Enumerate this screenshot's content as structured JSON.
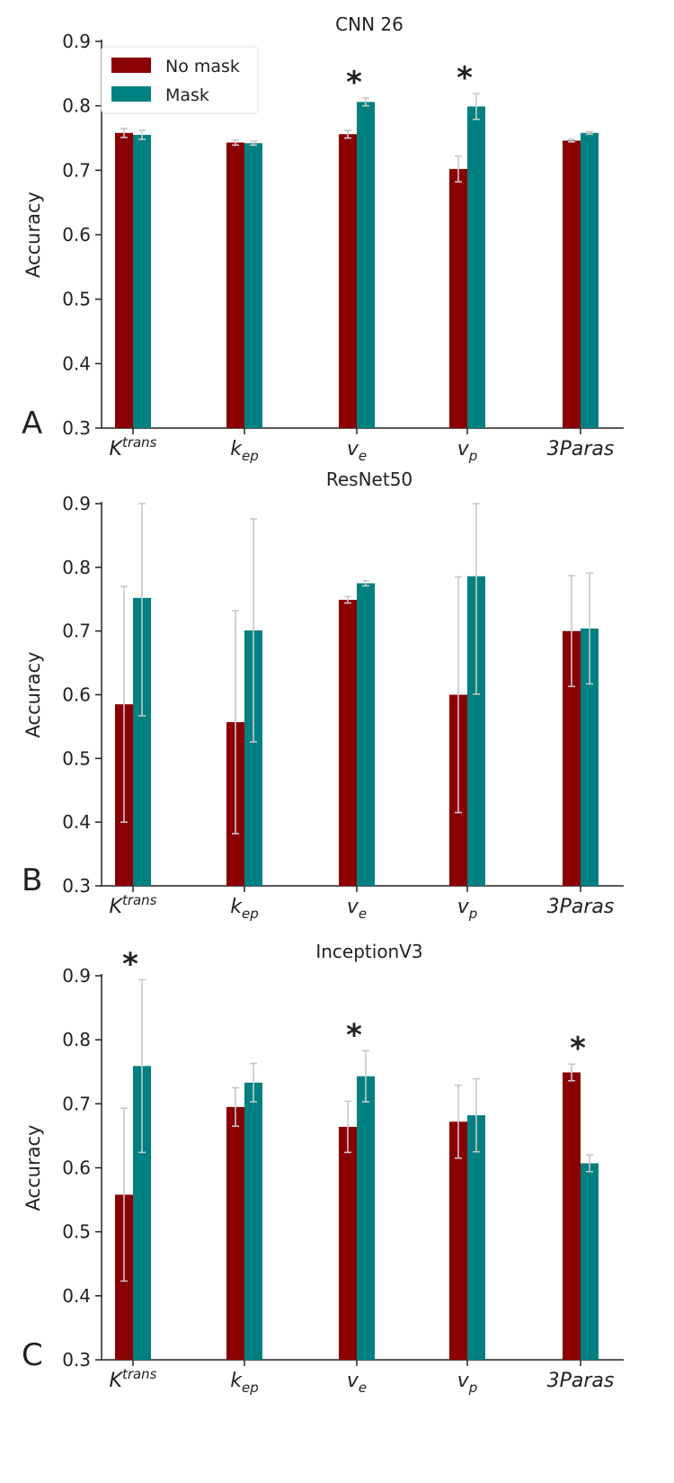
{
  "colors": {
    "no_mask": "#8b0000",
    "mask": "#008080",
    "error": "#c8c8c8",
    "axis": "#222222"
  },
  "legend": {
    "items": [
      {
        "label": "No mask",
        "color": "#8b0000"
      },
      {
        "label": "Mask",
        "color": "#008080"
      }
    ]
  },
  "chart_data": [
    {
      "type": "bar",
      "title": "CNN 26",
      "panel": "A",
      "ylabel": "Accuracy",
      "ylim": [
        0.3,
        0.9
      ],
      "yticks": [
        "0.3",
        "0.4",
        "0.5",
        "0.6",
        "0.7",
        "0.8",
        "0.9"
      ],
      "categories": [
        {
          "base": "K",
          "sup": "trans",
          "sub": ""
        },
        {
          "base": "k",
          "sup": "",
          "sub": "ep"
        },
        {
          "base": "v",
          "sup": "",
          "sub": "e"
        },
        {
          "base": "v",
          "sup": "",
          "sub": "p"
        },
        {
          "base": "3Paras",
          "sup": "",
          "sub": ""
        }
      ],
      "series": [
        {
          "name": "No mask",
          "values": [
            0.758,
            0.743,
            0.756,
            0.702,
            0.746
          ],
          "errors": [
            0.007,
            0.004,
            0.006,
            0.02,
            0.002
          ]
        },
        {
          "name": "Mask",
          "values": [
            0.755,
            0.742,
            0.806,
            0.799,
            0.758
          ],
          "errors": [
            0.007,
            0.003,
            0.006,
            0.02,
            0.002
          ]
        }
      ],
      "significant": [
        false,
        false,
        true,
        true,
        false
      ],
      "marker": "*",
      "legend": true
    },
    {
      "type": "bar",
      "title": "ResNet50",
      "panel": "B",
      "ylabel": "Accuracy",
      "ylim": [
        0.3,
        0.9
      ],
      "yticks": [
        "0.3",
        "0.4",
        "0.5",
        "0.6",
        "0.7",
        "0.8",
        "0.9"
      ],
      "categories": [
        {
          "base": "K",
          "sup": "trans",
          "sub": ""
        },
        {
          "base": "k",
          "sup": "",
          "sub": "ep"
        },
        {
          "base": "v",
          "sup": "",
          "sub": "e"
        },
        {
          "base": "v",
          "sup": "",
          "sub": "p"
        },
        {
          "base": "3Paras",
          "sup": "",
          "sub": ""
        }
      ],
      "series": [
        {
          "name": "No mask",
          "values": [
            0.585,
            0.557,
            0.749,
            0.6,
            0.7
          ],
          "errors": [
            0.185,
            0.175,
            0.005,
            0.185,
            0.087
          ]
        },
        {
          "name": "Mask",
          "values": [
            0.752,
            0.701,
            0.775,
            0.786,
            0.704
          ],
          "errors": [
            0.185,
            0.175,
            0.004,
            0.185,
            0.087
          ]
        }
      ],
      "significant": [
        false,
        false,
        false,
        false,
        false
      ],
      "marker": "*",
      "legend": false
    },
    {
      "type": "bar",
      "title": "InceptionV3",
      "panel": "C",
      "ylabel": "Accuracy",
      "ylim": [
        0.3,
        0.9
      ],
      "yticks": [
        "0.3",
        "0.4",
        "0.5",
        "0.6",
        "0.7",
        "0.8",
        "0.9"
      ],
      "categories": [
        {
          "base": "K",
          "sup": "trans",
          "sub": ""
        },
        {
          "base": "k",
          "sup": "",
          "sub": "ep"
        },
        {
          "base": "v",
          "sup": "",
          "sub": "e"
        },
        {
          "base": "v",
          "sup": "",
          "sub": "p"
        },
        {
          "base": "3Paras",
          "sup": "",
          "sub": ""
        }
      ],
      "series": [
        {
          "name": "No mask",
          "values": [
            0.558,
            0.695,
            0.664,
            0.672,
            0.749
          ],
          "errors": [
            0.135,
            0.03,
            0.04,
            0.057,
            0.013
          ]
        },
        {
          "name": "Mask",
          "values": [
            0.759,
            0.733,
            0.743,
            0.682,
            0.607
          ],
          "errors": [
            0.135,
            0.03,
            0.04,
            0.057,
            0.013
          ]
        }
      ],
      "significant": [
        true,
        false,
        true,
        false,
        true
      ],
      "marker": "*",
      "legend": false
    }
  ]
}
